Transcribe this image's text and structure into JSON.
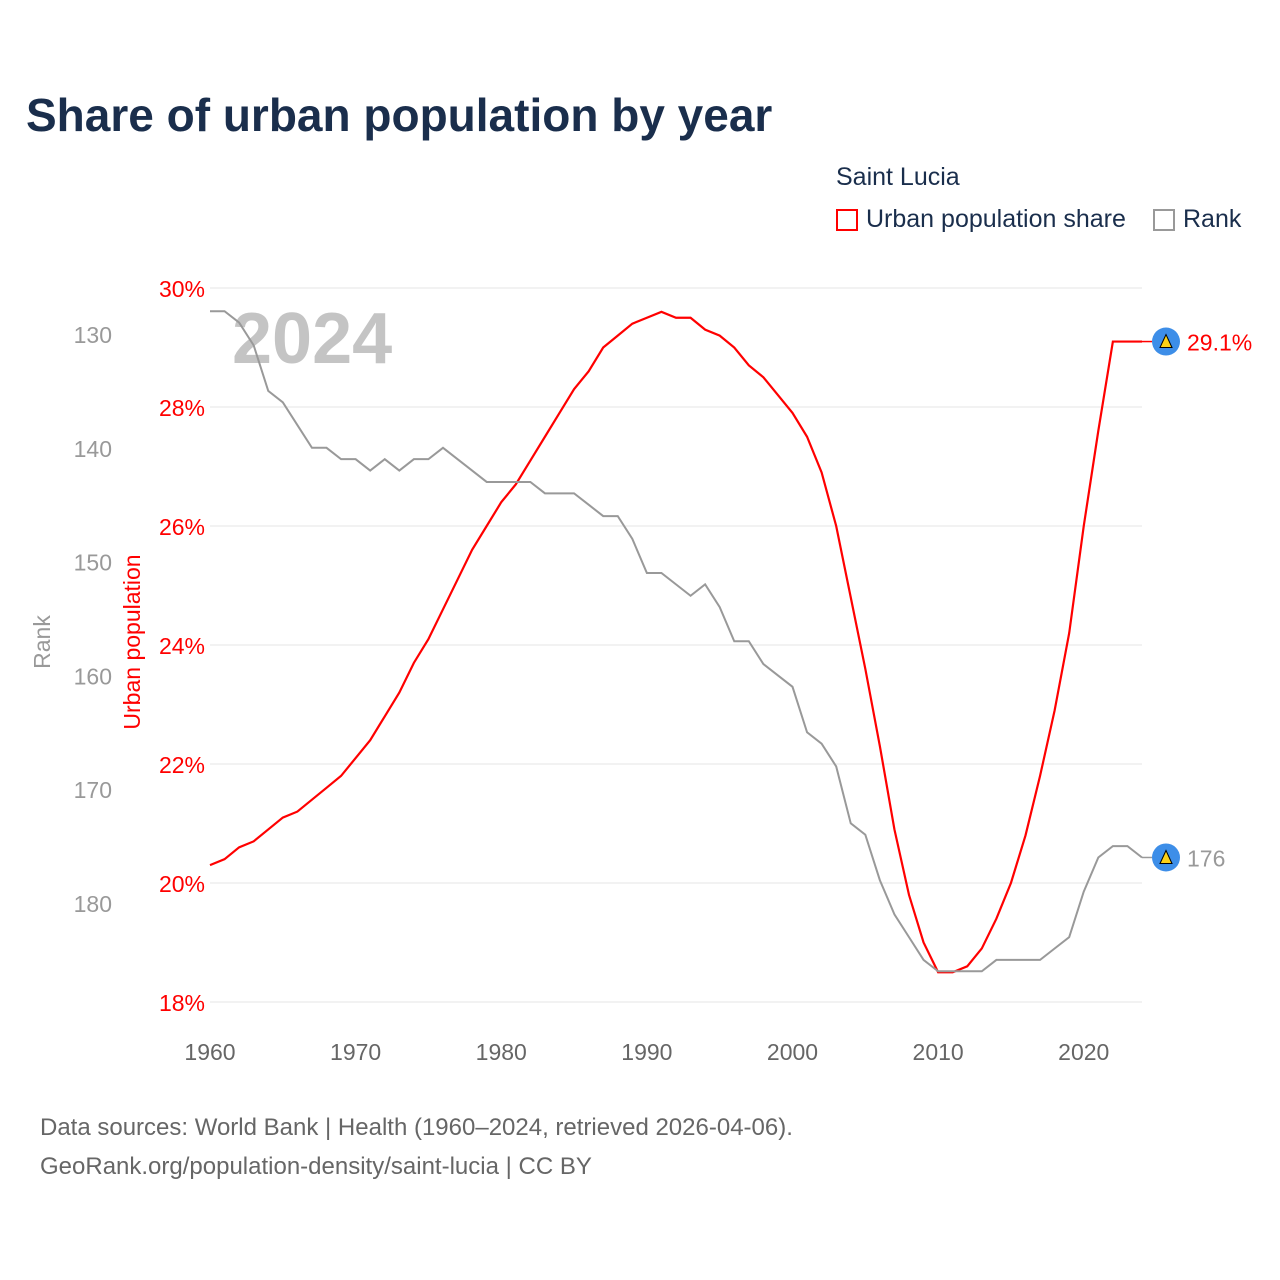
{
  "chart_data": {
    "type": "line",
    "title": "Share of urban population by year",
    "legend_title": "Saint Lucia",
    "legend_placement": "top-right",
    "year_watermark": "2024",
    "xlabel": "",
    "ylabel_left_outer": "Rank",
    "ylabel_left_inner": "Urban population",
    "x": [
      1960,
      1961,
      1962,
      1963,
      1964,
      1965,
      1966,
      1967,
      1968,
      1969,
      1970,
      1971,
      1972,
      1973,
      1974,
      1975,
      1976,
      1977,
      1978,
      1979,
      1980,
      1981,
      1982,
      1983,
      1984,
      1985,
      1986,
      1987,
      1988,
      1989,
      1990,
      1991,
      1992,
      1993,
      1994,
      1995,
      1996,
      1997,
      1998,
      1999,
      2000,
      2001,
      2002,
      2003,
      2004,
      2005,
      2006,
      2007,
      2008,
      2009,
      2010,
      2011,
      2012,
      2013,
      2014,
      2015,
      2016,
      2017,
      2018,
      2019,
      2020,
      2021,
      2022,
      2023,
      2024
    ],
    "xlim": [
      1960,
      2024
    ],
    "xticks": [
      "1960",
      "1970",
      "1980",
      "1990",
      "2000",
      "2010",
      "2020"
    ],
    "series": [
      {
        "name": "Urban population share",
        "color": "#ff0000",
        "axis": "share",
        "values": [
          20.3,
          20.4,
          20.6,
          20.7,
          20.9,
          21.1,
          21.2,
          21.4,
          21.6,
          21.8,
          22.1,
          22.4,
          22.8,
          23.2,
          23.7,
          24.1,
          24.6,
          25.1,
          25.6,
          26.0,
          26.4,
          26.7,
          27.1,
          27.5,
          27.9,
          28.3,
          28.6,
          29.0,
          29.2,
          29.4,
          29.5,
          29.6,
          29.5,
          29.5,
          29.3,
          29.2,
          29.0,
          28.7,
          28.5,
          28.2,
          27.9,
          27.5,
          26.9,
          26.0,
          24.8,
          23.6,
          22.3,
          20.9,
          19.8,
          19.0,
          18.5,
          18.5,
          18.6,
          18.9,
          19.4,
          20.0,
          20.8,
          21.8,
          22.9,
          24.2,
          26.0,
          27.6,
          29.1,
          29.1,
          29.1
        ],
        "end_label": "29.1%"
      },
      {
        "name": "Rank",
        "color": "#999999",
        "axis": "rank",
        "values": [
          128,
          128,
          129,
          131,
          135,
          136,
          138,
          140,
          140,
          141,
          141,
          142,
          141,
          142,
          141,
          141,
          140,
          141,
          142,
          143,
          143,
          143,
          143,
          144,
          144,
          144,
          145,
          146,
          146,
          148,
          151,
          151,
          152,
          153,
          152,
          154,
          157,
          157,
          159,
          160,
          161,
          165,
          166,
          168,
          173,
          174,
          178,
          181,
          183,
          185,
          186,
          186,
          186,
          186,
          185,
          185,
          185,
          185,
          184,
          183,
          179,
          176,
          175,
          175,
          176
        ],
        "end_label": "176"
      }
    ],
    "share_axis": {
      "ylim": [
        18,
        30
      ],
      "ticks": [
        "18%",
        "20%",
        "22%",
        "24%",
        "26%",
        "28%",
        "30%"
      ],
      "values": [
        18,
        20,
        22,
        24,
        26,
        28,
        30
      ],
      "color": "#ff0000"
    },
    "rank_axis": {
      "ylim": [
        130,
        180
      ],
      "inverted": true,
      "ticks": [
        "130",
        "140",
        "150",
        "160",
        "170",
        "180"
      ],
      "values": [
        130,
        140,
        150,
        160,
        170,
        180
      ],
      "color": "#999999"
    },
    "grid": true
  },
  "footer": {
    "line1": "Data sources: World Bank | Health (1960–2024, retrieved 2026-04-06).",
    "line2": "GeoRank.org/population-density/saint-lucia | CC BY"
  }
}
